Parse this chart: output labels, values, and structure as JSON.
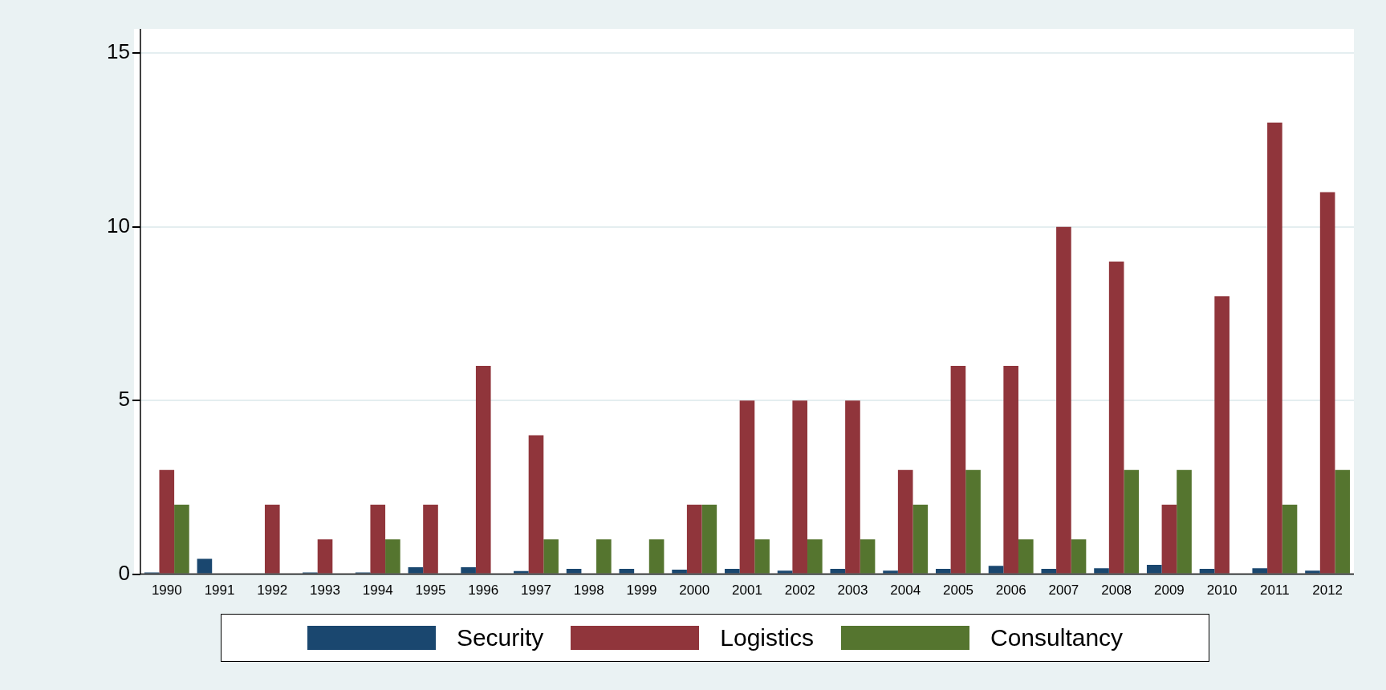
{
  "chart_data": {
    "type": "bar",
    "categories": [
      "1990",
      "1991",
      "1992",
      "1993",
      "1994",
      "1995",
      "1996",
      "1997",
      "1998",
      "1999",
      "2000",
      "2001",
      "2002",
      "2003",
      "2004",
      "2005",
      "2006",
      "2007",
      "2008",
      "2009",
      "2010",
      "2011",
      "2012"
    ],
    "series": [
      {
        "name": "Security",
        "color": "#1a476f",
        "values": [
          0.05,
          0.44,
          0,
          0.05,
          0.05,
          0.2,
          0.2,
          0.09,
          0.15,
          0.15,
          0.13,
          0.15,
          0.1,
          0.15,
          0.1,
          0.15,
          0.24,
          0.15,
          0.17,
          0.27,
          0.15,
          0.17,
          0.1
        ]
      },
      {
        "name": "Logistics",
        "color": "#90353b",
        "values": [
          3,
          0,
          2,
          1,
          2,
          2,
          6,
          4,
          0,
          0,
          2,
          5,
          5,
          5,
          3,
          6,
          6,
          10,
          9,
          2,
          8,
          13,
          11
        ]
      },
      {
        "name": "Consultancy",
        "color": "#55752f",
        "values": [
          2,
          0,
          0,
          0,
          1,
          0,
          0,
          1,
          1,
          1,
          2,
          1,
          1,
          1,
          2,
          3,
          1,
          1,
          3,
          3,
          0,
          2,
          3
        ]
      }
    ],
    "ylim": [
      0,
      15.7
    ],
    "yticks": [
      0,
      5,
      10,
      15
    ],
    "grid": "y",
    "legend": "bottom"
  }
}
